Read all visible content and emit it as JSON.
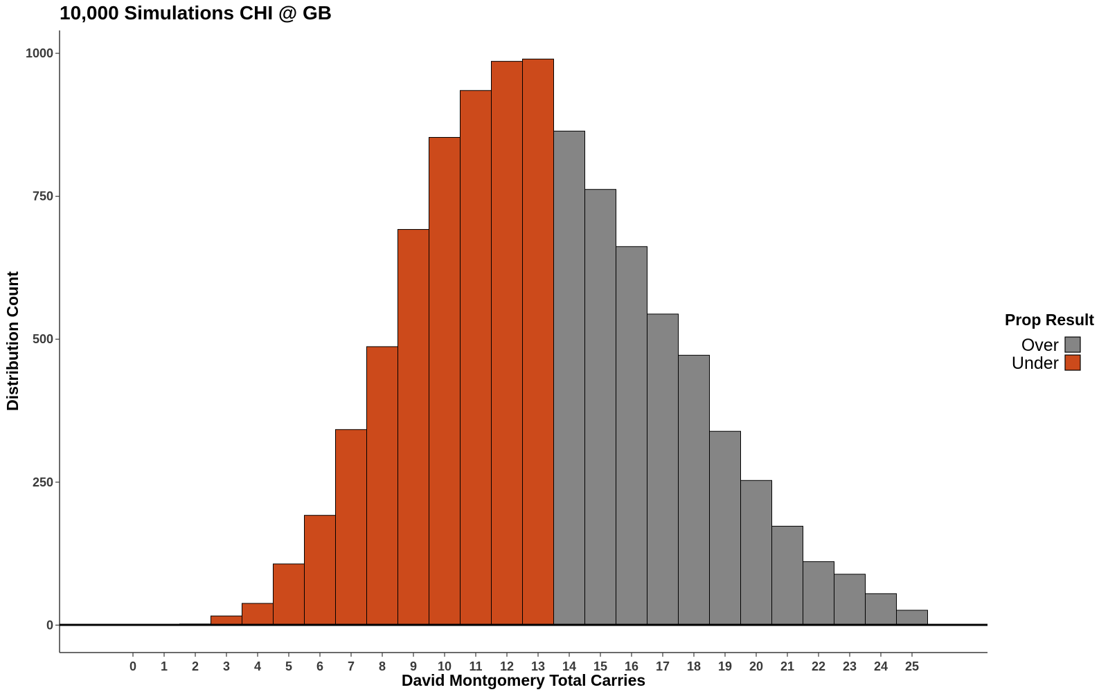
{
  "chart_data": {
    "type": "bar",
    "title": "10,000 Simulations CHI @ GB",
    "xlabel": "David Montgomery Total Carries",
    "ylabel": "Distribution Count",
    "categories": [
      "0",
      "1",
      "2",
      "3",
      "4",
      "5",
      "6",
      "7",
      "8",
      "9",
      "10",
      "11",
      "12",
      "13",
      "14",
      "15",
      "16",
      "17",
      "18",
      "19",
      "20",
      "21",
      "22",
      "23",
      "24",
      "25"
    ],
    "values": [
      0,
      0,
      2,
      16,
      38,
      107,
      192,
      342,
      487,
      692,
      853,
      935,
      986,
      990,
      864,
      762,
      662,
      544,
      472,
      339,
      253,
      173,
      111,
      89,
      55,
      26
    ],
    "group": [
      "Under",
      "Under",
      "Under",
      "Under",
      "Under",
      "Under",
      "Under",
      "Under",
      "Under",
      "Under",
      "Under",
      "Under",
      "Under",
      "Under",
      "Over",
      "Over",
      "Over",
      "Over",
      "Over",
      "Over",
      "Over",
      "Over",
      "Over",
      "Over",
      "Over",
      "Over"
    ],
    "yticks": [
      0,
      250,
      500,
      750,
      1000
    ],
    "ylim": [
      -48,
      1040
    ],
    "grid": false,
    "legend": {
      "title": "Prop Result",
      "placement": "right",
      "items": [
        {
          "name": "Over",
          "color": "#858585"
        },
        {
          "name": "Under",
          "color": "#cc4a1b"
        }
      ]
    }
  }
}
